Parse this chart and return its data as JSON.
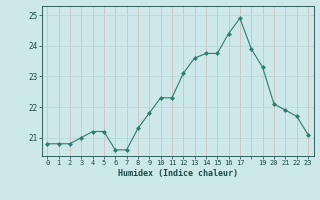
{
  "x": [
    0,
    1,
    2,
    3,
    4,
    5,
    6,
    7,
    8,
    9,
    10,
    11,
    12,
    13,
    14,
    15,
    16,
    17,
    18,
    19,
    20,
    21,
    22,
    23
  ],
  "y": [
    20.8,
    20.8,
    20.8,
    21.0,
    21.2,
    21.2,
    20.6,
    20.6,
    21.3,
    21.8,
    22.3,
    22.3,
    23.1,
    23.6,
    23.75,
    23.75,
    24.4,
    24.9,
    23.9,
    23.3,
    22.1,
    21.9,
    21.7,
    21.1
  ],
  "bg_color": "#cde8e8",
  "line_color": "#2e7d6e",
  "marker_color": "#2e7d6e",
  "xlabel": "Humidex (Indice chaleur)",
  "ylim": [
    20.4,
    25.3
  ],
  "yticks": [
    21,
    22,
    23,
    24,
    25
  ],
  "xticks": [
    0,
    1,
    2,
    3,
    4,
    5,
    6,
    7,
    8,
    9,
    10,
    11,
    12,
    13,
    14,
    15,
    16,
    17,
    18,
    19,
    20,
    21,
    22,
    23
  ],
  "xtick_labels": [
    "0",
    "1",
    "2",
    "3",
    "4",
    "5",
    "6",
    "7",
    "8",
    "9",
    "10",
    "11",
    "12",
    "13",
    "14",
    "15",
    "16",
    "17",
    "",
    "19",
    "20",
    "21",
    "22",
    "23"
  ],
  "grid_color": "#b8d4d4",
  "grid_color_v": "#d4b8b8"
}
